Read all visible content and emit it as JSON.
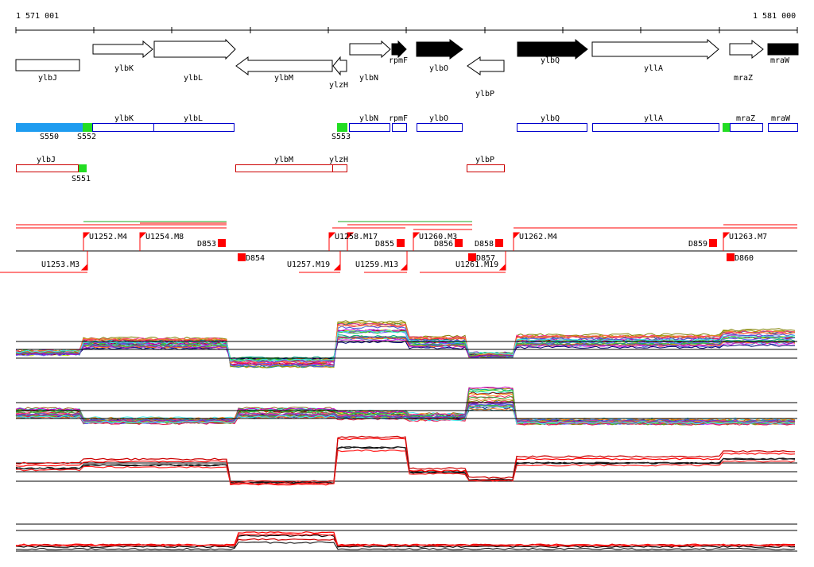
{
  "ruler": {
    "start_label": "1 571 001",
    "end_label": "1 581 000"
  },
  "genes": {
    "ylbJ": "ylbJ",
    "ylbK": "ylbK",
    "ylbL": "ylbL",
    "ylbM": "ylbM",
    "ylzH": "ylzH",
    "ylbN": "ylbN",
    "rpmF": "rpmF",
    "ylbO": "ylbO",
    "ylbP": "ylbP",
    "ylbQ": "ylbQ",
    "yllA": "yllA",
    "mraZ": "mraZ",
    "mraW": "mraW"
  },
  "segments": {
    "S550": "S550",
    "S551": "S551",
    "S552": "S552",
    "S553": "S553"
  },
  "transcripts": {
    "U1252": "U1252.M4",
    "U1253": "U1253.M3",
    "U1254": "U1254.M8",
    "U1257": "U1257.M19",
    "U1258": "U1258.M17",
    "U1259": "U1259.M13",
    "U1260": "U1260.M3",
    "U1261": "U1261.M19",
    "U1262": "U1262.M4",
    "U1263": "U1263.M7"
  },
  "downshifts": {
    "D853": "D853",
    "D854": "D854",
    "D855": "D855",
    "D856": "D856",
    "D857": "D857",
    "D858": "D858",
    "D859": "D859",
    "D860": "D860"
  },
  "colors": {
    "forward_outline": "#0000cc",
    "reverse_outline": "#cc0000",
    "segment_blue": "#1e9cf0",
    "segment_green": "#22dd22",
    "marker_red": "#ff0000"
  }
}
